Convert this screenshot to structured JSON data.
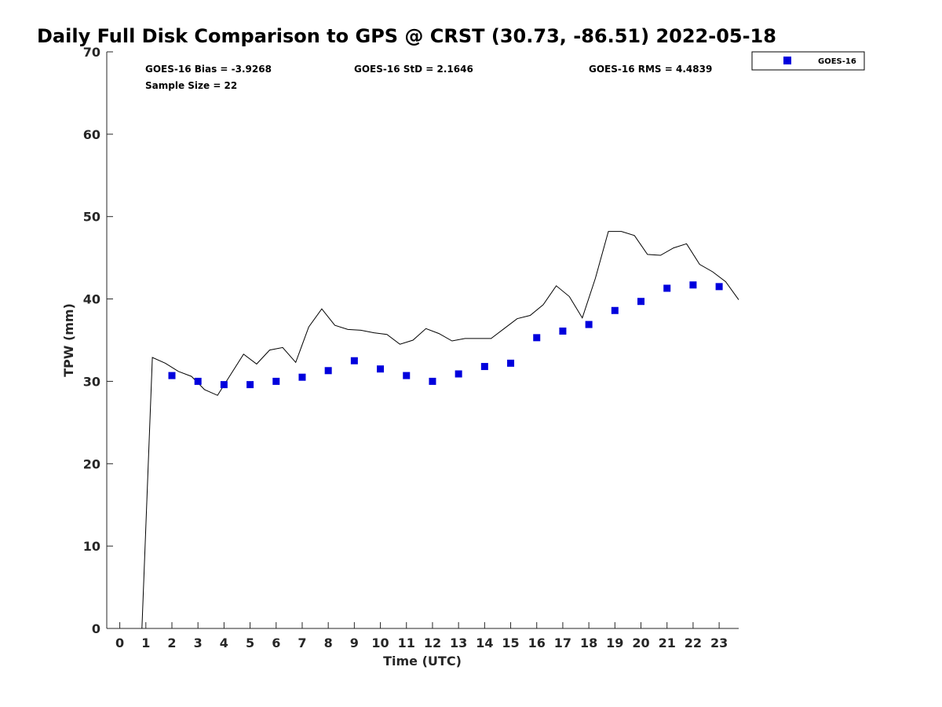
{
  "chart_data": {
    "type": "scatter",
    "title": "Daily Full Disk Comparison to GPS @ CRST (30.73, -86.51) 2022-05-18",
    "xlabel": "Time (UTC)",
    "ylabel": "TPW (mm)",
    "xlim": [
      -0.5,
      23.75
    ],
    "ylim": [
      0,
      70
    ],
    "xticks": [
      0,
      1,
      2,
      3,
      4,
      5,
      6,
      7,
      8,
      9,
      10,
      11,
      12,
      13,
      14,
      15,
      16,
      17,
      18,
      19,
      20,
      21,
      22,
      23
    ],
    "xtick_labels": [
      "0",
      "1",
      "2",
      "3",
      "4",
      "5",
      "6",
      "7",
      "8",
      "9",
      "10",
      "11",
      "12",
      "13",
      "14",
      "15",
      "16",
      "17",
      "18",
      "19",
      "20",
      "21",
      "22",
      "23"
    ],
    "yticks": [
      0,
      10,
      20,
      30,
      40,
      50,
      60,
      70
    ],
    "ytick_labels": [
      "0",
      "10",
      "20",
      "30",
      "40",
      "50",
      "60",
      "70"
    ],
    "grid": false,
    "legend_position": "top-right (outside)",
    "stats": {
      "bias": "GOES-16 Bias = -3.9268",
      "std": "GOES-16 StD = 2.1646",
      "rms": "GOES-16 RMS = 4.4839",
      "sample": "Sample Size = 22"
    },
    "series": [
      {
        "name": "GPS",
        "kind": "line",
        "color": "#000000",
        "x": [
          0.85,
          1.25,
          1.75,
          2.25,
          2.75,
          3.25,
          3.75,
          4.25,
          4.75,
          5.25,
          5.75,
          6.25,
          6.75,
          7.25,
          7.75,
          8.25,
          8.75,
          9.25,
          9.75,
          10.25,
          10.75,
          11.25,
          11.75,
          12.25,
          12.75,
          13.25,
          13.75,
          14.25,
          14.75,
          15.25,
          15.75,
          16.25,
          16.75,
          17.25,
          17.75,
          18.25,
          18.75,
          19.25,
          19.75,
          20.25,
          20.75,
          21.25,
          21.75,
          22.25,
          22.75,
          23.25,
          23.75
        ],
        "values": [
          0,
          32.9,
          32.2,
          31.2,
          30.6,
          29.0,
          28.3,
          30.8,
          33.3,
          32.1,
          33.8,
          34.1,
          32.3,
          36.6,
          38.8,
          36.8,
          36.3,
          36.2,
          35.9,
          35.7,
          34.5,
          35.0,
          36.4,
          35.8,
          34.9,
          35.2,
          35.2,
          35.2,
          36.4,
          37.6,
          38.0,
          39.3,
          41.6,
          40.3,
          37.7,
          42.5,
          48.2,
          48.2,
          47.7,
          45.4,
          45.3,
          46.2,
          46.7,
          44.2,
          43.3,
          42.1,
          39.9
        ]
      },
      {
        "name": "GOES-16",
        "kind": "scatter",
        "color": "#0000dd",
        "x": [
          2,
          3,
          4,
          5,
          6,
          7,
          8,
          9,
          10,
          11,
          12,
          13,
          14,
          15,
          16,
          17,
          18,
          19,
          20,
          21,
          22,
          23
        ],
        "values": [
          30.7,
          30.0,
          29.6,
          29.6,
          30.0,
          30.5,
          31.3,
          32.5,
          31.5,
          30.7,
          30.0,
          30.9,
          31.8,
          32.2,
          35.3,
          36.1,
          36.9,
          38.6,
          39.7,
          41.3,
          41.7,
          41.5
        ]
      }
    ]
  }
}
